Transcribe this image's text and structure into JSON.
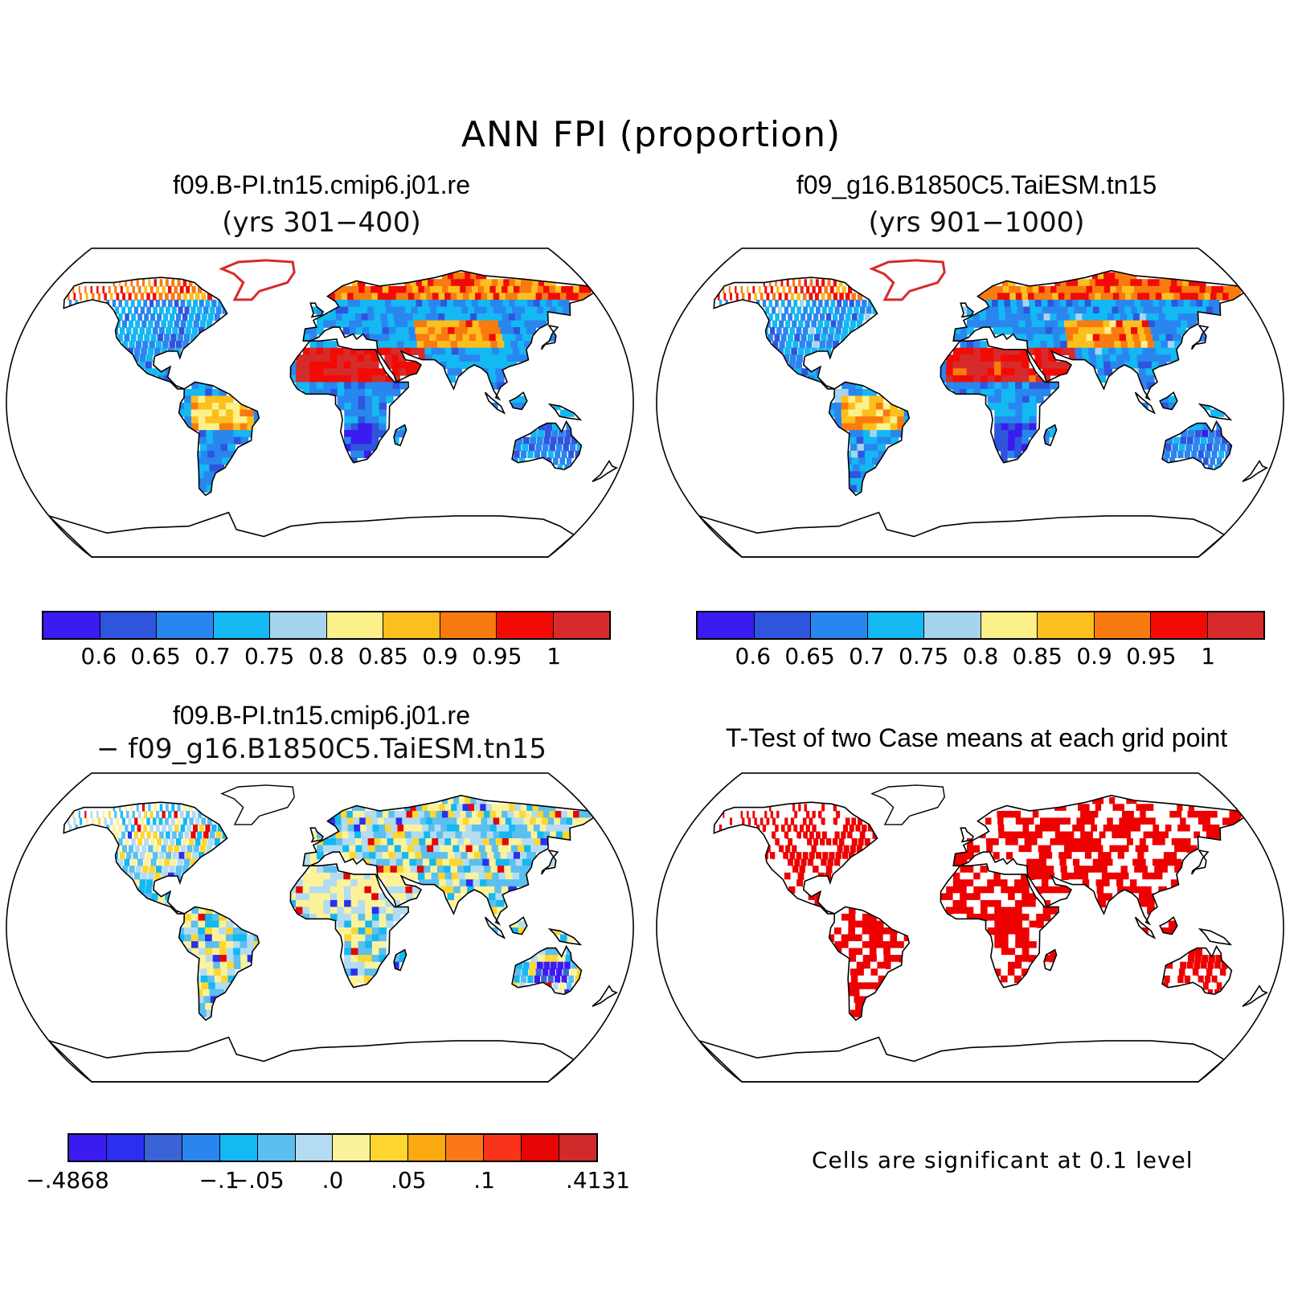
{
  "figure": {
    "title": "ANN FPI (proportion)"
  },
  "panels": {
    "top_left": {
      "title": "f09.B-PI.tn15.cmip6.j01.re",
      "subtitle": "(yrs 301−400)"
    },
    "top_right": {
      "title": "f09_g16.B1850C5.TaiESM.tn15",
      "subtitle": "(yrs 901−1000)"
    },
    "bottom_left": {
      "title": "f09.B-PI.tn15.cmip6.j01.re",
      "subtitle": "− f09_g16.B1850C5.TaiESM.tn15"
    },
    "bottom_right": {
      "title": "T-Test of two Case means at each grid point",
      "note": "Cells are significant at 0.1 level"
    }
  },
  "colorbars": {
    "case": {
      "colors": [
        "#3a1bf0",
        "#2f55dd",
        "#2a86ef",
        "#14b8f2",
        "#a6d4ee",
        "#fbf08a",
        "#fdbf1e",
        "#f97b10",
        "#f20b05",
        "#d72b2b"
      ],
      "labels": [
        "0.6",
        "0.65",
        "0.7",
        "0.75",
        "0.8",
        "0.85",
        "0.9",
        "0.95",
        "1"
      ]
    },
    "diff": {
      "colors": [
        "#3a1bf0",
        "#2b2ff0",
        "#3a64d6",
        "#2a86ef",
        "#14b8f2",
        "#5bbff0",
        "#b3dcf2",
        "#fcf29b",
        "#fdd630",
        "#fbaa12",
        "#fb7818",
        "#f9331a",
        "#e50505",
        "#d12a2a"
      ],
      "labels": [
        "−.4868",
        "−.1",
        "−.05",
        ".0",
        ".05",
        ".1",
        ".4131"
      ]
    },
    "significance": {
      "color": "#ee0000"
    }
  }
}
